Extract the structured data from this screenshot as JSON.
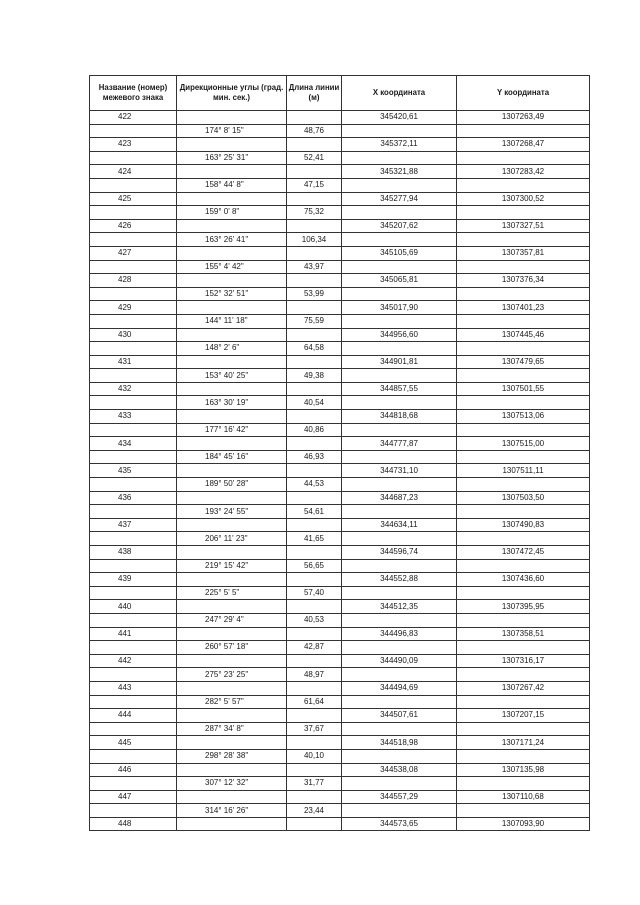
{
  "headers": [
    "Название (номер) межевого знака",
    "Дирекционные углы (град. мин. сек.)",
    "Длина линии (м)",
    "X координата",
    "Y координата"
  ],
  "rows": [
    {
      "name": "422",
      "x": "345420,61",
      "y": "1307263,49"
    },
    {
      "angle": "174°  8'  15\"",
      "length": "48,76"
    },
    {
      "name": "423",
      "x": "345372,11",
      "y": "1307268,47"
    },
    {
      "angle": "163° 25' 31\"",
      "length": "52,41"
    },
    {
      "name": "424",
      "x": "345321,88",
      "y": "1307283,42"
    },
    {
      "angle": "158° 44'  8\"",
      "length": "47,15"
    },
    {
      "name": "425",
      "x": "345277,94",
      "y": "1307300,52"
    },
    {
      "angle": "159°  0'  8\"",
      "length": "75,32"
    },
    {
      "name": "426",
      "x": "345207,62",
      "y": "1307327,51"
    },
    {
      "angle": "163° 26' 41\"",
      "length": "106,34"
    },
    {
      "name": "427",
      "x": "345105,69",
      "y": "1307357,81"
    },
    {
      "angle": "155°  4'  42\"",
      "length": "43,97"
    },
    {
      "name": "428",
      "x": "345065,81",
      "y": "1307376,34"
    },
    {
      "angle": "152° 32' 51\"",
      "length": "53,99"
    },
    {
      "name": "429",
      "x": "345017,90",
      "y": "1307401,23"
    },
    {
      "angle": "144° 11' 18\"",
      "length": "75,59"
    },
    {
      "name": "430",
      "x": "344956,60",
      "y": "1307445,46"
    },
    {
      "angle": "148°  2'  6\"",
      "length": "64,58"
    },
    {
      "name": "431",
      "x": "344901,81",
      "y": "1307479,65"
    },
    {
      "angle": "153° 40' 25\"",
      "length": "49,38"
    },
    {
      "name": "432",
      "x": "344857,55",
      "y": "1307501,55"
    },
    {
      "angle": "163° 30' 19\"",
      "length": "40,54"
    },
    {
      "name": "433",
      "x": "344818,68",
      "y": "1307513,06"
    },
    {
      "angle": "177° 16' 42\"",
      "length": "40,86"
    },
    {
      "name": "434",
      "x": "344777,87",
      "y": "1307515,00"
    },
    {
      "angle": "184° 45' 16\"",
      "length": "46,93"
    },
    {
      "name": "435",
      "x": "344731,10",
      "y": "1307511,11"
    },
    {
      "angle": "189° 50' 28\"",
      "length": "44,53"
    },
    {
      "name": "436",
      "x": "344687,23",
      "y": "1307503,50"
    },
    {
      "angle": "193° 24' 55\"",
      "length": "54,61"
    },
    {
      "name": "437",
      "x": "344634,11",
      "y": "1307490,83"
    },
    {
      "angle": "206° 11' 23\"",
      "length": "41,65"
    },
    {
      "name": "438",
      "x": "344596,74",
      "y": "1307472,45"
    },
    {
      "angle": "219° 15' 42\"",
      "length": "56,65"
    },
    {
      "name": "439",
      "x": "344552,88",
      "y": "1307436,60"
    },
    {
      "angle": "225°  5'  5\"",
      "length": "57,40"
    },
    {
      "name": "440",
      "x": "344512,35",
      "y": "1307395,95"
    },
    {
      "angle": "247° 29'  4\"",
      "length": "40,53"
    },
    {
      "name": "441",
      "x": "344496,83",
      "y": "1307358,51"
    },
    {
      "angle": "260° 57' 18\"",
      "length": "42,87"
    },
    {
      "name": "442",
      "x": "344490,09",
      "y": "1307316,17"
    },
    {
      "angle": "275° 23' 25\"",
      "length": "48,97"
    },
    {
      "name": "443",
      "x": "344494,69",
      "y": "1307267,42"
    },
    {
      "angle": "282°  5'  57\"",
      "length": "61,64"
    },
    {
      "name": "444",
      "x": "344507,61",
      "y": "1307207,15"
    },
    {
      "angle": "287° 34'  8\"",
      "length": "37,67"
    },
    {
      "name": "445",
      "x": "344518,98",
      "y": "1307171,24"
    },
    {
      "angle": "298° 28' 38\"",
      "length": "40,10"
    },
    {
      "name": "446",
      "x": "344538,08",
      "y": "1307135,98"
    },
    {
      "angle": "307° 12' 32\"",
      "length": "31,77"
    },
    {
      "name": "447",
      "x": "344557,29",
      "y": "1307110,68"
    },
    {
      "angle": "314° 16' 26\"",
      "length": "23,44"
    },
    {
      "name": "448",
      "x": "344573,65",
      "y": "1307093,90"
    }
  ]
}
